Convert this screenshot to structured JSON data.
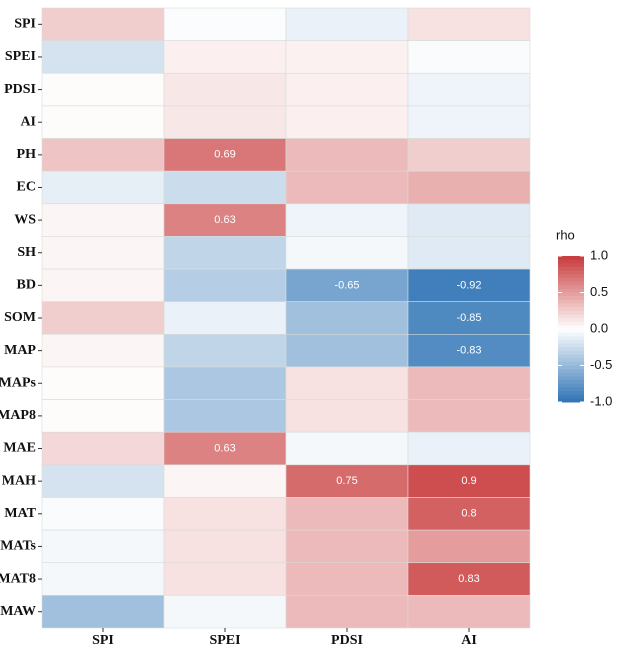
{
  "chart_data": {
    "type": "heatmap",
    "x": [
      "SPI",
      "SPEI",
      "PDSI",
      "AI"
    ],
    "y": [
      "SPI",
      "SPEI",
      "PDSI",
      "AI",
      "PH",
      "EC",
      "WS",
      "SH",
      "BD",
      "SOM",
      "MAP",
      "MAPs",
      "MAP8",
      "MAE",
      "MAH",
      "MAT",
      "MATs",
      "MAT8",
      "MAW"
    ],
    "values": [
      [
        0.25,
        -0.02,
        -0.1,
        0.15
      ],
      [
        -0.2,
        0.08,
        0.07,
        -0.03
      ],
      [
        0.02,
        0.12,
        0.08,
        -0.08
      ],
      [
        0.02,
        0.12,
        0.08,
        -0.08
      ],
      [
        0.3,
        0.69,
        0.35,
        0.25
      ],
      [
        -0.12,
        -0.25,
        0.35,
        0.4
      ],
      [
        0.05,
        0.63,
        -0.08,
        -0.15
      ],
      [
        0.05,
        -0.3,
        -0.05,
        -0.15
      ],
      [
        0.05,
        -0.35,
        -0.65,
        -0.92
      ],
      [
        0.25,
        -0.1,
        -0.45,
        -0.85
      ],
      [
        0.05,
        -0.3,
        -0.45,
        -0.83
      ],
      [
        0.02,
        -0.4,
        0.15,
        0.35
      ],
      [
        0.02,
        -0.4,
        0.15,
        0.35
      ],
      [
        0.2,
        0.63,
        -0.05,
        -0.1
      ],
      [
        -0.2,
        0.05,
        0.75,
        0.9
      ],
      [
        -0.03,
        0.15,
        0.35,
        0.8
      ],
      [
        -0.05,
        0.15,
        0.35,
        0.5
      ],
      [
        -0.05,
        0.15,
        0.35,
        0.83
      ],
      [
        -0.45,
        -0.05,
        0.35,
        0.35
      ]
    ],
    "label_threshold": 0.6,
    "zlim": [
      -1,
      1
    ],
    "colors": {
      "low": "#2f74b5",
      "mid": "#ffffff",
      "high": "#c8393a"
    },
    "legend_title": "rho",
    "legend_ticks": [
      {
        "value": 1,
        "label": "1.0"
      },
      0.5,
      {
        "value": 0,
        "label": "0.0"
      },
      -0.5,
      {
        "value": -1,
        "label": "-1.0"
      }
    ]
  }
}
